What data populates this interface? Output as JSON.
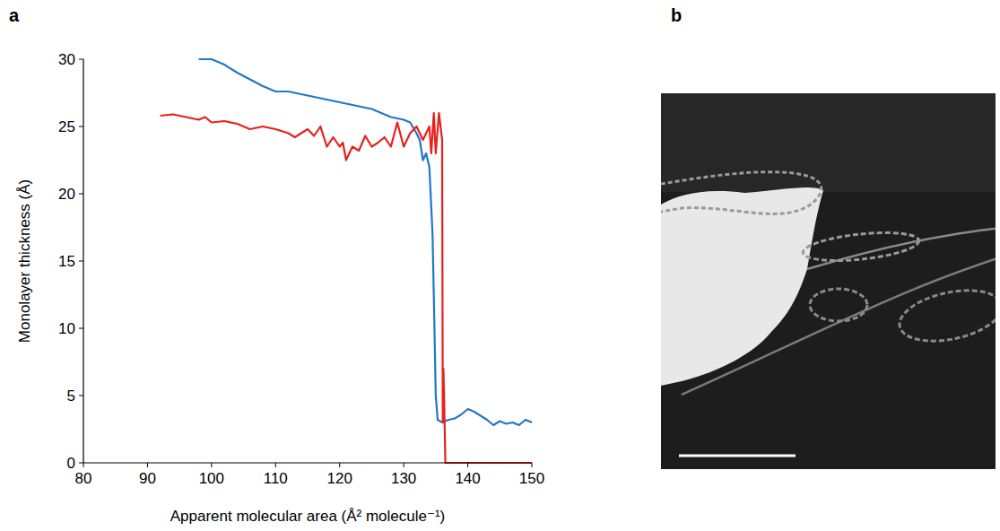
{
  "panel_labels": [
    "a",
    "b"
  ],
  "chart_data": {
    "type": "line",
    "x_label": "Apparent molecular area (Å² molecule⁻¹)",
    "y_label": "Monolayer thickness (Å)",
    "xlim": [
      80,
      150
    ],
    "xticks": [
      80,
      90,
      100,
      110,
      120,
      130,
      140,
      150
    ],
    "ylim": [
      0,
      30
    ],
    "yticks": [
      0,
      5,
      10,
      15,
      20,
      25,
      30
    ],
    "grid": false,
    "series": [
      {
        "color": "#1f78c8",
        "line_style": "solid",
        "x": [
          150,
          149,
          148,
          147,
          146,
          145,
          144,
          143,
          142,
          141,
          140,
          139,
          138,
          137,
          136,
          135.3,
          135,
          134.8,
          134.5,
          134.2,
          134,
          133.5,
          133,
          132.5,
          132,
          131,
          130,
          128,
          125,
          120,
          115,
          112,
          110,
          108,
          106,
          104,
          102,
          100,
          98
        ],
        "values": [
          3.0,
          3.2,
          2.8,
          3.0,
          2.9,
          3.1,
          2.8,
          3.2,
          3.5,
          3.8,
          4.0,
          3.6,
          3.3,
          3.2,
          3.0,
          3.2,
          5,
          10,
          17,
          20,
          22,
          23,
          22.5,
          24,
          24.5,
          25.3,
          25.5,
          25.7,
          26.3,
          26.8,
          27.3,
          27.6,
          27.6,
          28.0,
          28.5,
          29.0,
          29.6,
          30.0,
          30.0
        ]
      },
      {
        "color": "#e8211c",
        "line_style": "solid",
        "x": [
          150,
          136.5,
          136.3,
          136.2,
          136.1,
          136,
          135.5,
          135,
          134.7,
          134.3,
          134,
          133,
          132,
          131,
          130,
          129,
          128,
          127,
          126,
          125,
          124,
          123,
          122,
          121,
          120.5,
          120,
          119,
          118,
          117,
          116,
          115,
          114,
          113,
          112,
          110,
          108,
          106,
          104,
          102,
          100,
          99,
          98,
          96,
          94,
          92
        ],
        "values": [
          0,
          0,
          5,
          7,
          3,
          24,
          26,
          23,
          26,
          23,
          25,
          24,
          25,
          24.5,
          23.5,
          25.3,
          23.5,
          24.2,
          23.8,
          23.5,
          24.3,
          23.2,
          23.5,
          22.5,
          23.8,
          23.5,
          24.2,
          23.5,
          25,
          24.3,
          24.8,
          24.5,
          24.2,
          24.5,
          24.8,
          25.0,
          24.8,
          25.2,
          25.4,
          25.3,
          25.7,
          25.5,
          25.7,
          25.9,
          25.8
        ]
      }
    ]
  }
}
